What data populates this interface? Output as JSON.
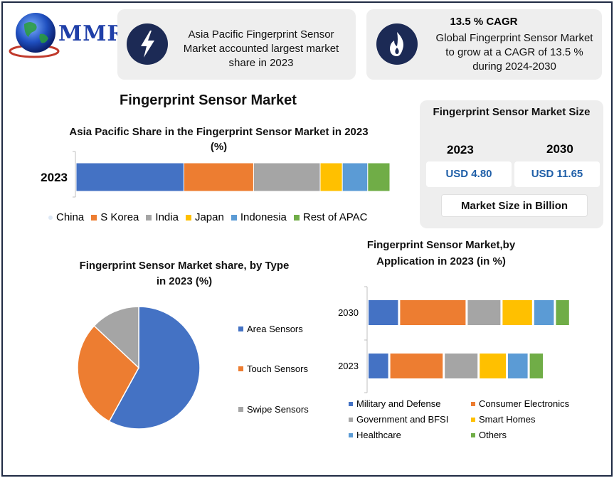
{
  "brand": {
    "logo_text": "MMR"
  },
  "cards": {
    "region": {
      "text_line1": "Asia Pacific Fingerprint Sensor",
      "text_line2": "Market accounted largest market",
      "text_line3": "share in 2023",
      "icon": "lightning-icon"
    },
    "cagr": {
      "title": "13.5 % CAGR",
      "text_line1": "Global Fingerprint Sensor Market",
      "text_line2": "to grow at a CAGR of 13.5 %",
      "text_line3": "during 2024-2030",
      "icon": "flame-icon"
    }
  },
  "main_title": "Fingerprint Sensor Market",
  "market_size": {
    "title": "Fingerprint Sensor Market Size",
    "years": [
      "2023",
      "2030"
    ],
    "values": [
      "USD 4.80",
      "USD 11.65"
    ],
    "unit_label": "Market Size in Billion"
  },
  "colors": {
    "blue": "#4472c4",
    "orange": "#ed7d31",
    "gray": "#a5a5a5",
    "yellow": "#ffc000",
    "lightblue": "#5b9bd5",
    "green": "#70ad47",
    "navy": "#1c2a55",
    "card_bg": "#eeeeee"
  },
  "chart_data": [
    {
      "type": "bar",
      "orientation": "horizontal-stacked",
      "title": "Asia Pacific Share in the Fingerprint Sensor Market in 2023 (%)",
      "categories": [
        "2023"
      ],
      "series": [
        {
          "name": "China",
          "values": [
            34
          ]
        },
        {
          "name": "S Korea",
          "values": [
            22
          ]
        },
        {
          "name": "India",
          "values": [
            21
          ]
        },
        {
          "name": "Japan",
          "values": [
            7
          ]
        },
        {
          "name": "Indonesia",
          "values": [
            8
          ]
        },
        {
          "name": "Rest of APAC",
          "values": [
            7
          ]
        }
      ],
      "legend": "bottom"
    },
    {
      "type": "pie",
      "title": "Fingerprint Sensor Market share, by Type in 2023 (%)",
      "labels": [
        "Area Sensors",
        "Touch Sensors",
        "Swipe Sensors"
      ],
      "values": [
        58,
        29,
        13
      ],
      "legend": "right"
    },
    {
      "type": "bar",
      "orientation": "horizontal-stacked",
      "title": "Fingerprint Sensor Market,by Application in 2023 (in %)",
      "categories": [
        "2030",
        "2023"
      ],
      "series": [
        {
          "name": "Military and Defense",
          "values": [
            9,
            6
          ]
        },
        {
          "name": "Consumer Electronics",
          "values": [
            20,
            16
          ]
        },
        {
          "name": "Government and BFSI",
          "values": [
            10,
            10
          ]
        },
        {
          "name": "Smart Homes",
          "values": [
            9,
            8
          ]
        },
        {
          "name": "Healthcare",
          "values": [
            6,
            6
          ]
        },
        {
          "name": "Others",
          "values": [
            4,
            4
          ]
        }
      ],
      "legend": "bottom"
    }
  ]
}
